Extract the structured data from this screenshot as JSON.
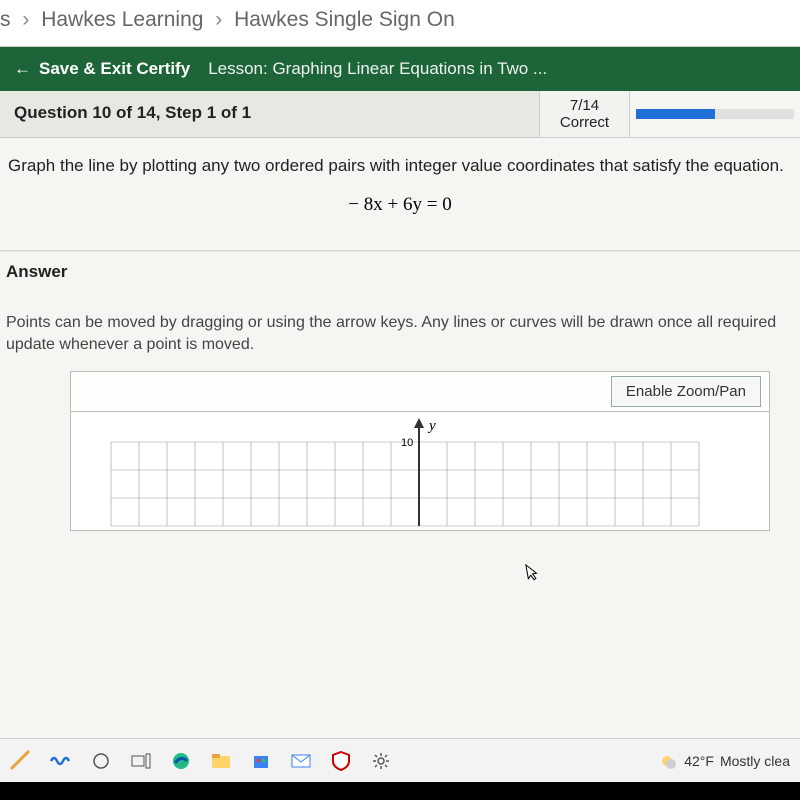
{
  "breadcrumb": {
    "item0": "s",
    "item1": "Hawkes Learning",
    "item2": "Hawkes Single Sign On"
  },
  "greenbar": {
    "save_exit": "Save & Exit Certify",
    "lesson": "Lesson: Graphing Linear Equations in Two ..."
  },
  "question": {
    "label": "Question 10 of 14, Step 1 of 1",
    "score_frac": "7/14",
    "score_label": "Correct",
    "progress_pct": 50
  },
  "prompt": "Graph the line by plotting any two ordered pairs with integer value coordinates that satisfy the equation.",
  "equation": "− 8x + 6y = 0",
  "answer_heading": "Answer",
  "instructions": "Points can be moved by dragging or using the arrow keys. Any lines or curves will be drawn once all required update whenever a point is moved.",
  "zoom_label": "Enable Zoom/Pan",
  "chart": {
    "y_axis_label": "y",
    "y_tick_label": "10",
    "grid_color": "#999999",
    "axis_color": "#333333",
    "background_color": "#ffffff",
    "cell_size": 28,
    "cols": 21,
    "rows_visible": 3,
    "axis_col_index": 11
  },
  "colors": {
    "green_bar": "#1d6539",
    "progress_fill": "#1e6fd6",
    "page_bg": "#f5f5f2"
  },
  "taskbar": {
    "weather_temp": "42°F",
    "weather_desc": "Mostly clea"
  }
}
